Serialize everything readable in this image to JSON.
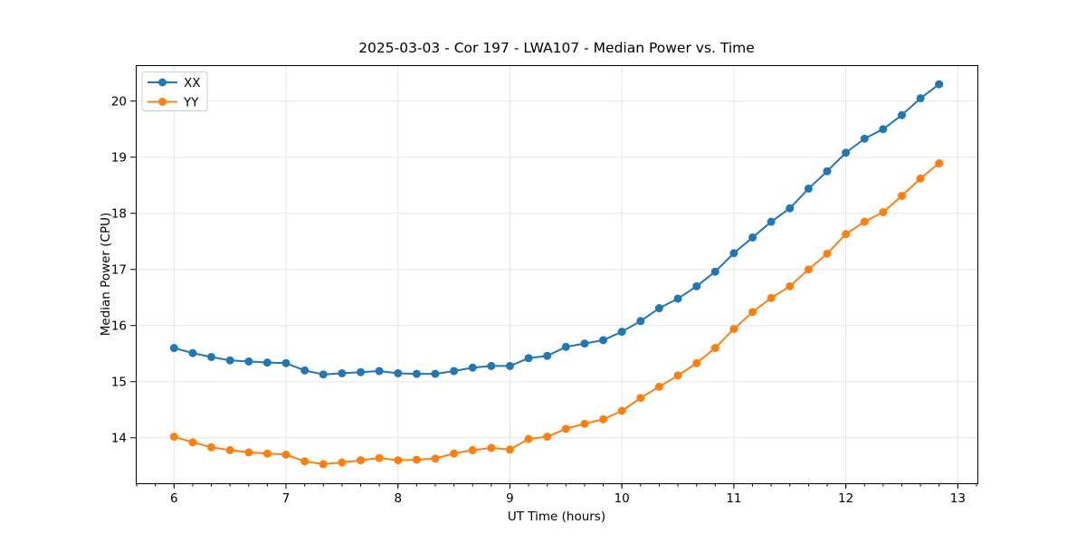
{
  "chart_data": {
    "type": "line",
    "title": "2025-03-03 - Cor 197 - LWA107 - Median Power vs. Time",
    "xlabel": "UT Time (hours)",
    "ylabel": "Median Power (CPU)",
    "xlim": [
      5.658,
      13.175
    ],
    "ylim": [
      13.19,
      20.64
    ],
    "xticks": [
      6,
      7,
      8,
      9,
      10,
      11,
      12,
      13
    ],
    "yticks": [
      14,
      15,
      16,
      17,
      18,
      19,
      20
    ],
    "x_minor_tick_step": 0.166667,
    "grid": true,
    "background": "#ffffff",
    "legend": {
      "position": "upper-left"
    },
    "x": [
      6.0,
      6.167,
      6.333,
      6.5,
      6.667,
      6.833,
      7.0,
      7.167,
      7.333,
      7.5,
      7.667,
      7.833,
      8.0,
      8.167,
      8.333,
      8.5,
      8.667,
      8.833,
      9.0,
      9.167,
      9.333,
      9.5,
      9.667,
      9.833,
      10.0,
      10.167,
      10.333,
      10.5,
      10.667,
      10.833,
      11.0,
      11.167,
      11.333,
      11.5,
      11.667,
      11.833,
      12.0,
      12.167,
      12.333,
      12.5,
      12.667,
      12.833
    ],
    "series": [
      {
        "name": "XX",
        "color": "#1f77b4",
        "marker": "circle",
        "values": [
          15.6,
          15.51,
          15.44,
          15.38,
          15.36,
          15.34,
          15.33,
          15.2,
          15.13,
          15.15,
          15.17,
          15.19,
          15.15,
          15.14,
          15.14,
          15.19,
          15.25,
          15.28,
          15.28,
          15.42,
          15.46,
          15.62,
          15.68,
          15.74,
          15.89,
          16.08,
          16.31,
          16.48,
          16.7,
          16.96,
          17.29,
          17.57,
          17.85,
          18.09,
          18.44,
          18.75,
          19.08,
          19.33,
          19.5,
          19.75,
          20.05,
          20.3
        ]
      },
      {
        "name": "YY",
        "color": "#ff7f0e",
        "marker": "circle",
        "values": [
          14.02,
          13.92,
          13.83,
          13.78,
          13.74,
          13.72,
          13.7,
          13.58,
          13.53,
          13.56,
          13.6,
          13.64,
          13.6,
          13.61,
          13.63,
          13.72,
          13.78,
          13.82,
          13.79,
          13.98,
          14.02,
          14.16,
          14.25,
          14.33,
          14.48,
          14.71,
          14.91,
          15.11,
          15.33,
          15.6,
          15.94,
          16.24,
          16.49,
          16.7,
          17.0,
          17.28,
          17.63,
          17.85,
          18.02,
          18.31,
          18.62,
          18.89
        ]
      }
    ]
  }
}
